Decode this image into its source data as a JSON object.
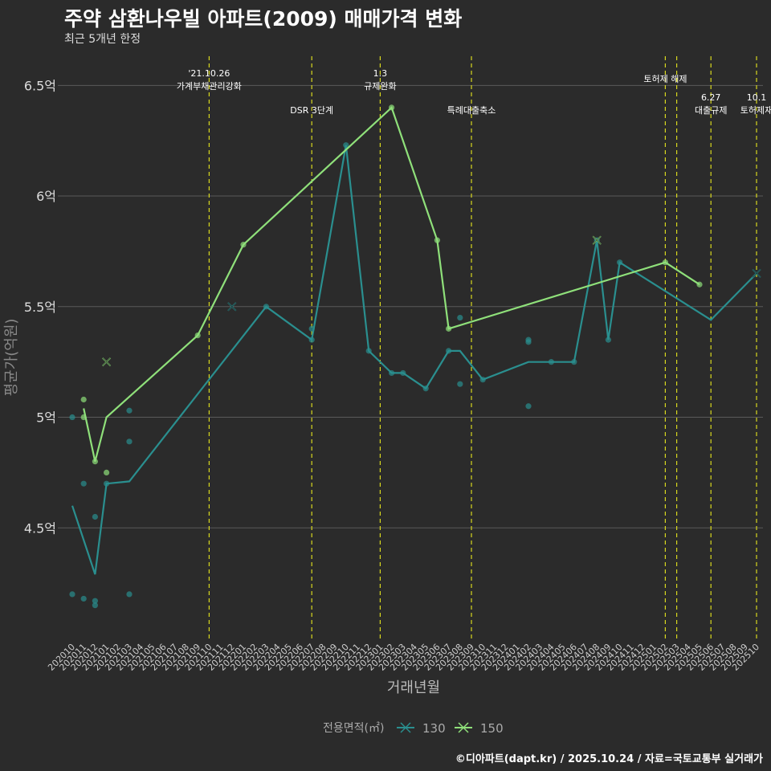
{
  "title": "주약 삼환나우빌 아파트(2009) 매매가격 변화",
  "subtitle": "최근 5개년 한정",
  "caption": "©디아파트(dapt.kr) / 2025.10.24 / 자료=국토교통부 실거래가",
  "chart_data": {
    "type": "line",
    "title": "주약 삼환나우빌 아파트(2009) 매매가격 변화",
    "subtitle": "최근 5개년 한정",
    "xlabel": "거래년월",
    "ylabel": "평균가(억원)",
    "ylim": [
      4.0,
      6.65
    ],
    "yticks": [
      {
        "v": 4.5,
        "label": "4.5억"
      },
      {
        "v": 5.0,
        "label": "5억"
      },
      {
        "v": 5.5,
        "label": "5.5억"
      },
      {
        "v": 6.0,
        "label": "6억"
      },
      {
        "v": 6.5,
        "label": "6.5억"
      }
    ],
    "x_months": [
      "202010",
      "202011",
      "202012",
      "202101",
      "202102",
      "202103",
      "202104",
      "202105",
      "202106",
      "202107",
      "202108",
      "202109",
      "202110",
      "202111",
      "202112",
      "202201",
      "202202",
      "202203",
      "202204",
      "202205",
      "202206",
      "202207",
      "202208",
      "202209",
      "202210",
      "202211",
      "202212",
      "202301",
      "202302",
      "202303",
      "202304",
      "202305",
      "202306",
      "202307",
      "202308",
      "202309",
      "202310",
      "202311",
      "202312",
      "202401",
      "202402",
      "202403",
      "202404",
      "202405",
      "202406",
      "202407",
      "202408",
      "202409",
      "202410",
      "202411",
      "202412",
      "202501",
      "202502",
      "202503",
      "202504",
      "202505",
      "202506",
      "202507",
      "202508",
      "202509",
      "202510"
    ],
    "legend_title": "전용면적(㎡)",
    "series": [
      {
        "name": "130",
        "color": "#2a8f8f",
        "line": [
          [
            "202010",
            4.6
          ],
          [
            "202012",
            4.29
          ],
          [
            "202101",
            4.7
          ],
          [
            "202103",
            4.71
          ],
          [
            "202203",
            5.5
          ],
          [
            "202207",
            5.35
          ],
          [
            "202210",
            6.23
          ],
          [
            "202212",
            5.3
          ],
          [
            "202302",
            5.2
          ],
          [
            "202303",
            5.2
          ],
          [
            "202305",
            5.13
          ],
          [
            "202307",
            5.3
          ],
          [
            "202308",
            5.3
          ],
          [
            "202310",
            5.17
          ],
          [
            "202402",
            5.25
          ],
          [
            "202404",
            5.25
          ],
          [
            "202406",
            5.25
          ],
          [
            "202408",
            5.8
          ],
          [
            "202409",
            5.35
          ],
          [
            "202410",
            5.7
          ],
          [
            "202506",
            5.44
          ],
          [
            "202510",
            5.65
          ]
        ],
        "points": [
          [
            "202010",
            5.0
          ],
          [
            "202010",
            4.2
          ],
          [
            "202011",
            4.7
          ],
          [
            "202011",
            4.18
          ],
          [
            "202012",
            4.55
          ],
          [
            "202012",
            4.17
          ],
          [
            "202012",
            4.15
          ],
          [
            "202101",
            4.7
          ],
          [
            "202103",
            5.03
          ],
          [
            "202103",
            4.89
          ],
          [
            "202103",
            4.2
          ],
          [
            "202203",
            5.5
          ],
          [
            "202207",
            5.4
          ],
          [
            "202207",
            5.35
          ],
          [
            "202210",
            6.23
          ],
          [
            "202212",
            5.3
          ],
          [
            "202302",
            5.2
          ],
          [
            "202303",
            5.2
          ],
          [
            "202305",
            5.13
          ],
          [
            "202307",
            5.3
          ],
          [
            "202308",
            5.45
          ],
          [
            "202308",
            5.15
          ],
          [
            "202310",
            5.17
          ],
          [
            "202402",
            5.35
          ],
          [
            "202402",
            5.34
          ],
          [
            "202402",
            5.05
          ],
          [
            "202404",
            5.25
          ],
          [
            "202406",
            5.25
          ],
          [
            "202408",
            5.8
          ],
          [
            "202409",
            5.35
          ],
          [
            "202410",
            5.7
          ]
        ],
        "cancelled": [
          [
            "202112",
            5.5
          ],
          [
            "202510",
            5.65
          ]
        ]
      },
      {
        "name": "150",
        "color": "#8fe07a",
        "line": [
          [
            "202011",
            5.04
          ],
          [
            "202011",
            5.04
          ],
          [
            "202012",
            4.8
          ],
          [
            "202101",
            5.0
          ],
          [
            "202109",
            5.37
          ],
          [
            "202201",
            5.78
          ],
          [
            "202302",
            6.4
          ],
          [
            "202306",
            5.8
          ],
          [
            "202307",
            5.4
          ],
          [
            "202502",
            5.7
          ],
          [
            "202505",
            5.6
          ]
        ],
        "points": [
          [
            "202011",
            5.08
          ],
          [
            "202011",
            5.0
          ],
          [
            "202012",
            4.8
          ],
          [
            "202101",
            4.75
          ],
          [
            "202109",
            5.37
          ],
          [
            "202201",
            5.78
          ],
          [
            "202302",
            6.4
          ],
          [
            "202306",
            5.8
          ],
          [
            "202307",
            5.4
          ],
          [
            "202502",
            5.7
          ],
          [
            "202505",
            5.6
          ]
        ],
        "cancelled": [
          [
            "202101",
            5.25
          ],
          [
            "202408",
            5.8
          ]
        ]
      }
    ],
    "events": [
      {
        "month": "202110",
        "line1": "'21.10.26",
        "line2": "가계부채관리강화",
        "tier": "high"
      },
      {
        "month": "202207",
        "line1": "",
        "line2": "DSR 3단계",
        "tier": "low"
      },
      {
        "month": "202301",
        "line1": "1.3",
        "line2": "규제완화",
        "tier": "high"
      },
      {
        "month": "202309",
        "line1": "",
        "line2": "특례대출축소",
        "tier": "low"
      },
      {
        "month": "202502",
        "line1": "",
        "line2": "토허제 해제",
        "tier": "mid"
      },
      {
        "month": "202503",
        "line1": "",
        "line2": "",
        "tier": "none"
      },
      {
        "month": "202506",
        "line1": "6.27",
        "line2": "대출규제",
        "tier": "low"
      },
      {
        "month": "202510",
        "line1": "10.1",
        "line2": "토허제재",
        "tier": "low"
      }
    ]
  }
}
